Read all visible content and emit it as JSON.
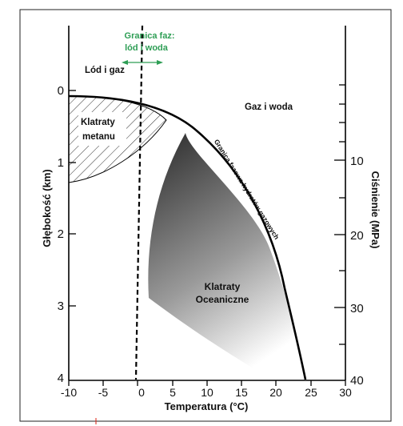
{
  "diagram": {
    "axes": {
      "x": {
        "label": "Temperatura (°C)",
        "ticks": [
          "-10",
          "-5",
          "0",
          "5",
          "10",
          "15",
          "20",
          "25",
          "30"
        ],
        "values": [
          -10,
          -5,
          0,
          5,
          10,
          15,
          20,
          25,
          30
        ]
      },
      "y_left": {
        "label": "Głębokość (km)",
        "ticks": [
          "0",
          "1",
          "2",
          "3",
          "4"
        ],
        "values": [
          0,
          1,
          2,
          3,
          4
        ]
      },
      "y_right": {
        "label": "Ciśnienie (MPa)",
        "ticks": [
          "10",
          "20",
          "30",
          "40"
        ],
        "values": [
          10,
          20,
          30,
          40
        ]
      }
    },
    "regions": {
      "ice_gas": "Lód i gaz",
      "gas_water": "Gaz i woda",
      "methane_clathrates_line1": "Klatraty",
      "methane_clathrates_line2": "metanu",
      "oceanic_clathrates_line1": "Klatraty",
      "oceanic_clathrates_line2": "Oceaniczne"
    },
    "phase_boundary_ice": {
      "label_line1": "Granica faz:",
      "label_line2": "lód i woda",
      "color": "#2e9e55"
    },
    "hydrate_boundary_label": "Granica fazowa hydratów gazowych",
    "colors": {
      "frame": "#000000",
      "gradient_dark": "#3a3a3a",
      "gradient_light": "#ffffff"
    }
  }
}
